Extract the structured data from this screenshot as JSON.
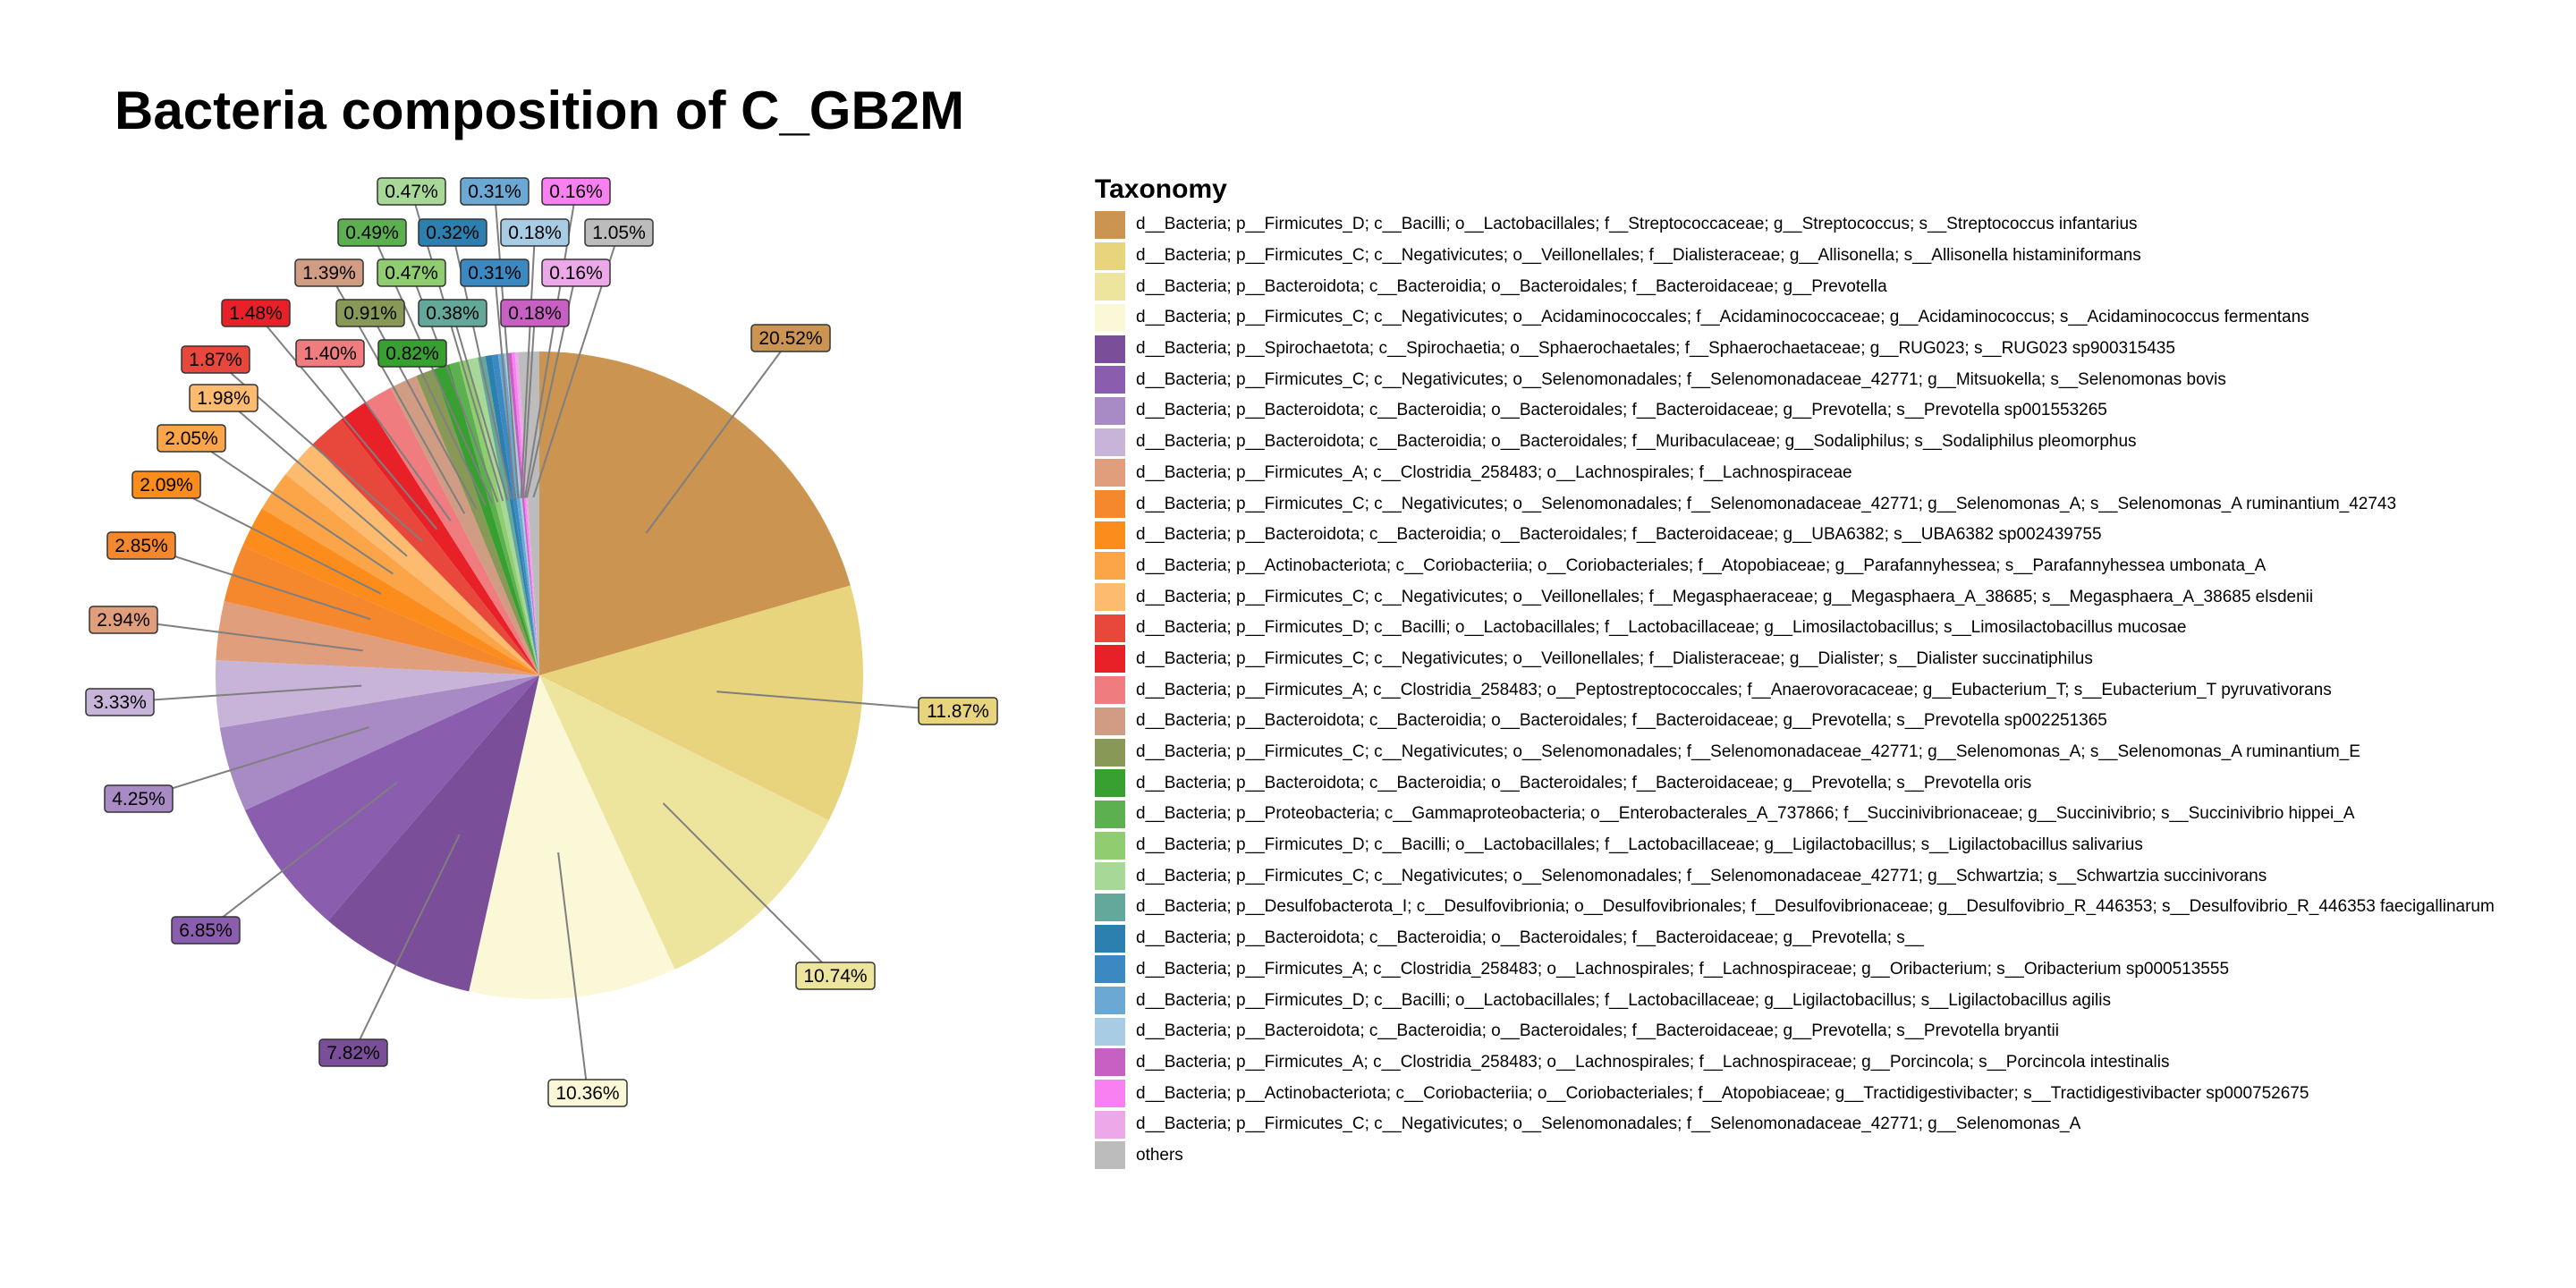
{
  "chart_data": {
    "type": "pie",
    "title": "Bacteria composition of C_GB2M",
    "legend_title": "Taxonomy",
    "legend_position": "right",
    "slices": [
      {
        "label": "d__Bacteria; p__Firmicutes_D; c__Bacilli; o__Lactobacillales; f__Streptococcaceae; g__Streptococcus; s__Streptococcus infantarius",
        "value": 20.52,
        "value_label": "20.52%",
        "color": "#CC9451"
      },
      {
        "label": "d__Bacteria; p__Firmicutes_C; c__Negativicutes; o__Veillonellales; f__Dialisteraceae; g__Allisonella; s__Allisonella histaminiformans",
        "value": 11.87,
        "value_label": "11.87%",
        "color": "#E8D47C"
      },
      {
        "label": "d__Bacteria; p__Bacteroidota; c__Bacteroidia; o__Bacteroidales; f__Bacteroidaceae; g__Prevotella",
        "value": 10.74,
        "value_label": "10.74%",
        "color": "#EDE49E"
      },
      {
        "label": "d__Bacteria; p__Firmicutes_C; c__Negativicutes; o__Acidaminococcales; f__Acidaminococcaceae; g__Acidaminococcus; s__Acidaminococcus fermentans",
        "value": 10.36,
        "value_label": "10.36%",
        "color": "#FAF8D6"
      },
      {
        "label": "d__Bacteria; p__Spirochaetota; c__Spirochaetia; o__Sphaerochaetales; f__Sphaerochaetaceae; g__RUG023; s__RUG023 sp900315435",
        "value": 7.82,
        "value_label": "7.82%",
        "color": "#7A4E99"
      },
      {
        "label": "d__Bacteria; p__Firmicutes_C; c__Negativicutes; o__Selenomonadales; f__Selenomonadaceae_42771; g__Mitsuokella; s__Selenomonas bovis",
        "value": 6.85,
        "value_label": "6.85%",
        "color": "#8A5DAE"
      },
      {
        "label": "d__Bacteria; p__Bacteroidota; c__Bacteroidia; o__Bacteroidales; f__Bacteroidaceae; g__Prevotella; s__Prevotella sp001553265",
        "value": 4.25,
        "value_label": "4.25%",
        "color": "#A88BC4"
      },
      {
        "label": "d__Bacteria; p__Bacteroidota; c__Bacteroidia; o__Bacteroidales; f__Muribaculaceae; g__Sodaliphilus; s__Sodaliphilus pleomorphus",
        "value": 3.33,
        "value_label": "3.33%",
        "color": "#C8B4D8"
      },
      {
        "label": "d__Bacteria; p__Firmicutes_A; c__Clostridia_258483; o__Lachnospirales; f__Lachnospiraceae",
        "value": 2.94,
        "value_label": "2.94%",
        "color": "#E09E7C"
      },
      {
        "label": "d__Bacteria; p__Firmicutes_C; c__Negativicutes; o__Selenomonadales; f__Selenomonadaceae_42771; g__Selenomonas_A; s__Selenomonas_A ruminantium_42743",
        "value": 2.85,
        "value_label": "2.85%",
        "color": "#F5882C"
      },
      {
        "label": "d__Bacteria; p__Bacteroidota; c__Bacteroidia; o__Bacteroidales; f__Bacteroidaceae; g__UBA6382; s__UBA6382 sp002439755",
        "value": 2.09,
        "value_label": "2.09%",
        "color": "#FC8C1C"
      },
      {
        "label": "d__Bacteria; p__Actinobacteriota; c__Coriobacteriia; o__Coriobacteriales; f__Atopobiaceae; g__Parafannyhessea; s__Parafannyhessea umbonata_A",
        "value": 2.05,
        "value_label": "2.05%",
        "color": "#FBA448"
      },
      {
        "label": "d__Bacteria; p__Firmicutes_C; c__Negativicutes; o__Veillonellales; f__Megasphaeraceae; g__Megasphaera_A_38685; s__Megasphaera_A_38685 elsdenii",
        "value": 1.98,
        "value_label": "1.98%",
        "color": "#FDBB70"
      },
      {
        "label": "d__Bacteria; p__Firmicutes_D; c__Bacilli; o__Lactobacillales; f__Lactobacillaceae; g__Limosilactobacillus; s__Limosilactobacillus mucosae",
        "value": 1.87,
        "value_label": "1.87%",
        "color": "#E8483C"
      },
      {
        "label": "d__Bacteria; p__Firmicutes_C; c__Negativicutes; o__Veillonellales; f__Dialisteraceae; g__Dialister; s__Dialister succinatiphilus",
        "value": 1.48,
        "value_label": "1.48%",
        "color": "#E82128"
      },
      {
        "label": "d__Bacteria; p__Firmicutes_A; c__Clostridia_258483; o__Peptostreptococcales; f__Anaerovoracaceae; g__Eubacterium_T; s__Eubacterium_T pyruvativorans",
        "value": 1.4,
        "value_label": "1.40%",
        "color": "#F07C80"
      },
      {
        "label": "d__Bacteria; p__Bacteroidota; c__Bacteroidia; o__Bacteroidales; f__Bacteroidaceae; g__Prevotella; s__Prevotella sp002251365",
        "value": 1.39,
        "value_label": "1.39%",
        "color": "#D09C84"
      },
      {
        "label": "d__Bacteria; p__Firmicutes_C; c__Negativicutes; o__Selenomonadales; f__Selenomonadaceae_42771; g__Selenomonas_A; s__Selenomonas_A ruminantium_E",
        "value": 0.91,
        "value_label": "0.91%",
        "color": "#889856"
      },
      {
        "label": "d__Bacteria; p__Bacteroidota; c__Bacteroidia; o__Bacteroidales; f__Bacteroidaceae; g__Prevotella; s__Prevotella oris",
        "value": 0.82,
        "value_label": "0.82%",
        "color": "#38A030"
      },
      {
        "label": "d__Bacteria; p__Proteobacteria; c__Gammaproteobacteria; o__Enterobacterales_A_737866; f__Succinivibrionaceae; g__Succinivibrio; s__Succinivibrio hippei_A",
        "value": 0.49,
        "value_label": "0.49%",
        "color": "#5CB050"
      },
      {
        "label": "d__Bacteria; p__Firmicutes_D; c__Bacilli; o__Lactobacillales; f__Lactobacillaceae; g__Ligilactobacillus; s__Ligilactobacillus salivarius",
        "value": 0.47,
        "value_label": "0.47%",
        "color": "#90CC70"
      },
      {
        "label": "d__Bacteria; p__Firmicutes_C; c__Negativicutes; o__Selenomonadales; f__Selenomonadaceae_42771; g__Schwartzia; s__Schwartzia succinivorans",
        "value": 0.47,
        "value_label": "0.47%",
        "color": "#A8D898"
      },
      {
        "label": "d__Bacteria; p__Desulfobacterota_I; c__Desulfovibrionia; o__Desulfovibrionales; f__Desulfovibrionaceae; g__Desulfovibrio_R_446353; s__Desulfovibrio_R_446353 faecigallinarum",
        "value": 0.38,
        "value_label": "0.38%",
        "color": "#64A89C"
      },
      {
        "label": "d__Bacteria; p__Bacteroidota; c__Bacteroidia; o__Bacteroidales; f__Bacteroidaceae; g__Prevotella; s__",
        "value": 0.32,
        "value_label": "0.32%",
        "color": "#2C80B0"
      },
      {
        "label": "d__Bacteria; p__Firmicutes_A; c__Clostridia_258483; o__Lachnospirales; f__Lachnospiraceae; g__Oribacterium; s__Oribacterium sp000513555",
        "value": 0.31,
        "value_label": "0.31%",
        "color": "#3C88C0"
      },
      {
        "label": "d__Bacteria; p__Firmicutes_D; c__Bacilli; o__Lactobacillales; f__Lactobacillaceae; g__Ligilactobacillus; s__Ligilactobacillus agilis",
        "value": 0.31,
        "value_label": "0.31%",
        "color": "#6CA8D4"
      },
      {
        "label": "d__Bacteria; p__Bacteroidota; c__Bacteroidia; o__Bacteroidales; f__Bacteroidaceae; g__Prevotella; s__Prevotella bryantii",
        "value": 0.18,
        "value_label": "0.18%",
        "color": "#A8CCE4"
      },
      {
        "label": "d__Bacteria; p__Firmicutes_A; c__Clostridia_258483; o__Lachnospirales; f__Lachnospiraceae; g__Porcincola; s__Porcincola intestinalis",
        "value": 0.18,
        "value_label": "0.18%",
        "color": "#C860C4"
      },
      {
        "label": "d__Bacteria; p__Actinobacteriota; c__Coriobacteriia; o__Coriobacteriales; f__Atopobiaceae; g__Tractidigestivibacter; s__Tractidigestivibacter sp000752675",
        "value": 0.16,
        "value_label": "0.16%",
        "color": "#F880F0"
      },
      {
        "label": "d__Bacteria; p__Firmicutes_C; c__Negativicutes; o__Selenomonadales; f__Selenomonadaceae_42771; g__Selenomonas_A",
        "value": 0.16,
        "value_label": "0.16%",
        "color": "#ECA8E8"
      },
      {
        "label": "others",
        "value": 1.05,
        "value_label": "1.05%",
        "color": "#BCBCBC"
      }
    ]
  }
}
